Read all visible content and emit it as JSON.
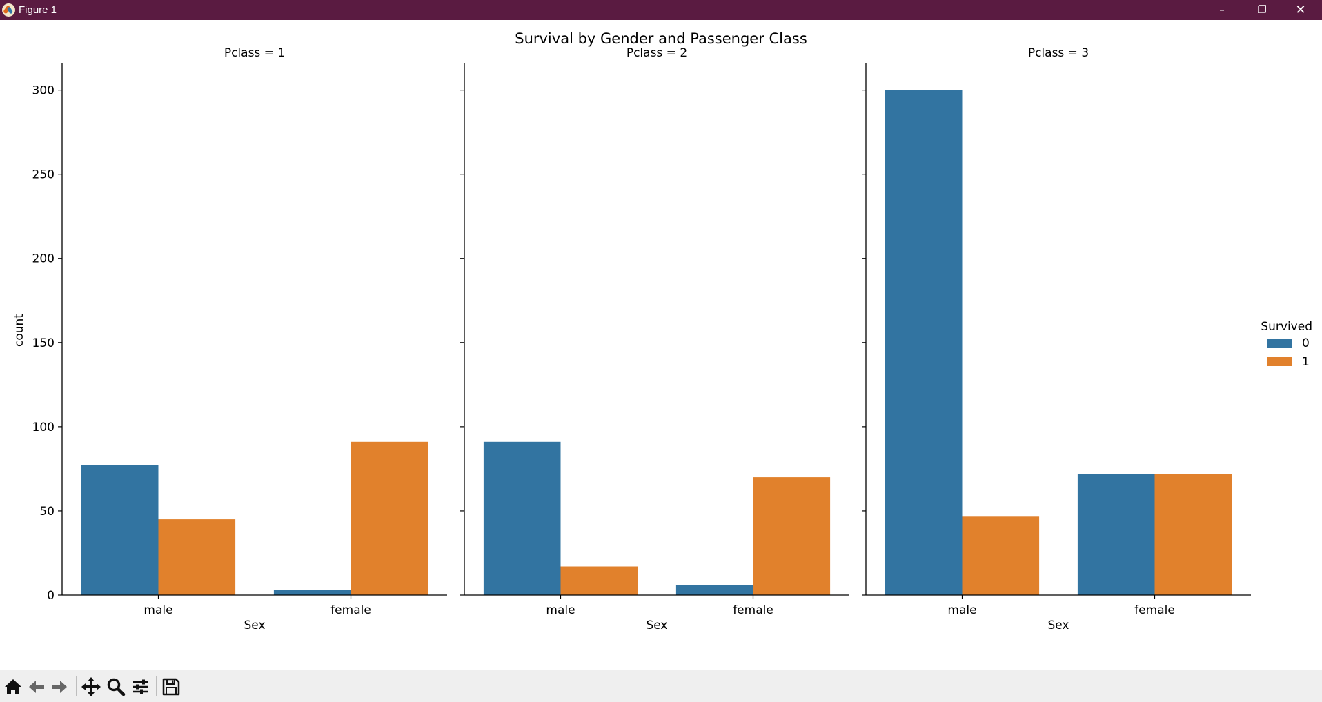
{
  "window": {
    "title": "Figure 1",
    "controls": {
      "minimize": "–",
      "maximize": "❐",
      "close": "✕"
    }
  },
  "colors": {
    "survived_0": "#3274a1",
    "survived_1": "#e1812c",
    "titlebar": "#5a1b41"
  },
  "chart_data": {
    "type": "bar",
    "title": "Survival by Gender and Passenger Class",
    "ylabel": "count",
    "ylim": [
      0,
      315
    ],
    "yticks": [
      0,
      50,
      100,
      150,
      200,
      250,
      300
    ],
    "categories": [
      "male",
      "female"
    ],
    "legend": {
      "title": "Survived",
      "entries": [
        "0",
        "1"
      ],
      "placement": "right"
    },
    "facets": [
      {
        "title": "Pclass = 1",
        "xlabel": "Sex",
        "series": [
          {
            "name": "0",
            "values": [
              77,
              3
            ]
          },
          {
            "name": "1",
            "values": [
              45,
              91
            ]
          }
        ]
      },
      {
        "title": "Pclass = 2",
        "xlabel": "Sex",
        "series": [
          {
            "name": "0",
            "values": [
              91,
              6
            ]
          },
          {
            "name": "1",
            "values": [
              17,
              70
            ]
          }
        ]
      },
      {
        "title": "Pclass = 3",
        "xlabel": "Sex",
        "series": [
          {
            "name": "0",
            "values": [
              300,
              72
            ]
          },
          {
            "name": "1",
            "values": [
              47,
              72
            ]
          }
        ]
      }
    ]
  },
  "toolbar": {
    "buttons": [
      {
        "name": "home",
        "icon": "home-icon"
      },
      {
        "name": "back",
        "icon": "arrow-left-icon"
      },
      {
        "name": "forward",
        "icon": "arrow-right-icon"
      },
      {
        "name": "pan",
        "icon": "move-icon"
      },
      {
        "name": "zoom",
        "icon": "magnifier-icon"
      },
      {
        "name": "configure",
        "icon": "sliders-icon"
      },
      {
        "name": "save",
        "icon": "floppy-disk-icon"
      }
    ]
  }
}
